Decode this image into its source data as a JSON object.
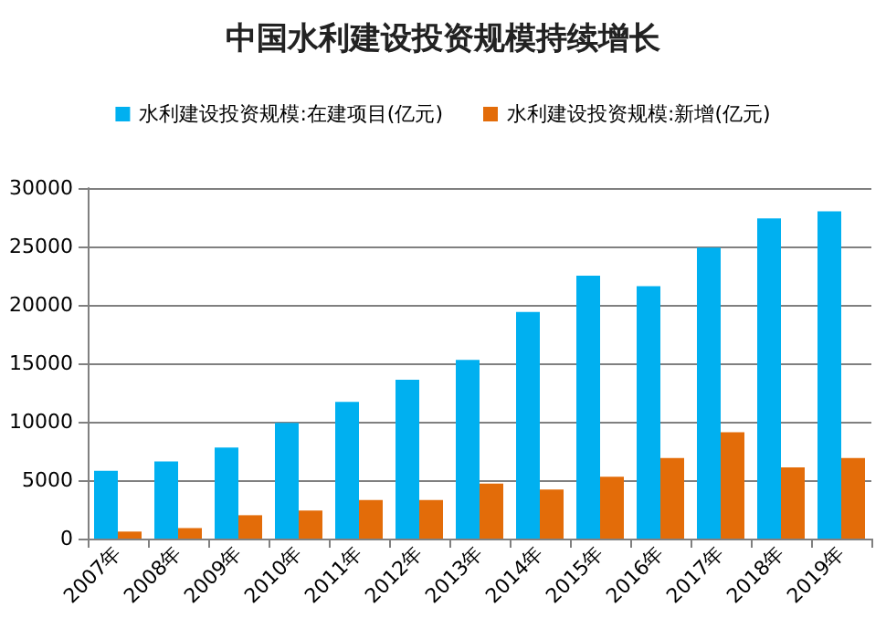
{
  "chart_data": {
    "type": "bar",
    "title": "中国水利建设投资规模持续增长",
    "categories": [
      "2007年",
      "2008年",
      "2009年",
      "2010年",
      "2011年",
      "2012年",
      "2013年",
      "2014年",
      "2015年",
      "2016年",
      "2017年",
      "2018年",
      "2019年"
    ],
    "series": [
      {
        "name": "水利建设投资规模:在建项目(亿元)",
        "color": "#00b0f0",
        "values": [
          5800,
          6600,
          7800,
          9900,
          11700,
          13600,
          15300,
          19400,
          22500,
          21600,
          24900,
          27400,
          28000
        ]
      },
      {
        "name": "水利建设投资规模:新增(亿元)",
        "color": "#e36c09",
        "values": [
          600,
          900,
          2000,
          2400,
          3300,
          3300,
          4700,
          4200,
          5300,
          6900,
          9100,
          6100,
          6900
        ]
      }
    ],
    "ylim": [
      0,
      30000
    ],
    "yticks": [
      0,
      5000,
      10000,
      15000,
      20000,
      25000,
      30000
    ],
    "grid": "y",
    "legend": "top"
  }
}
